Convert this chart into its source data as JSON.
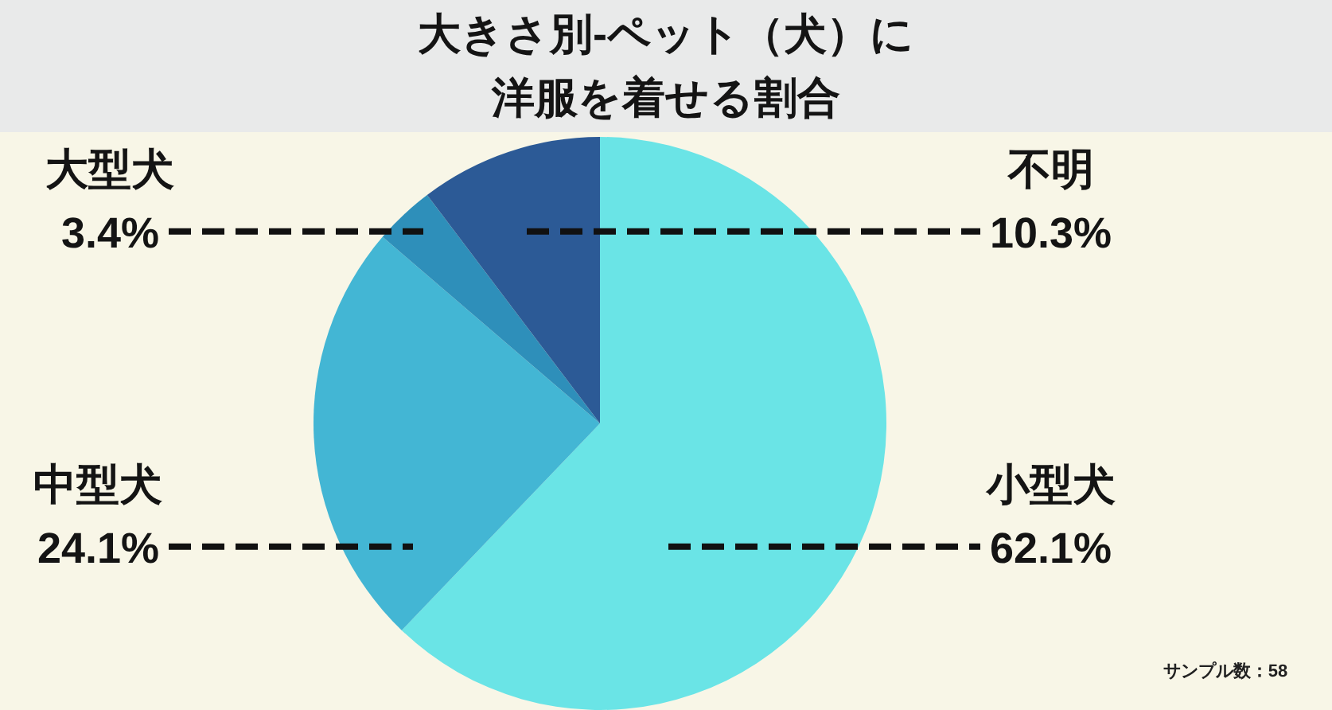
{
  "chart_data": {
    "type": "pie",
    "title": "大きさ別-ペット（犬）に洋服を着せる割合",
    "categories": [
      "小型犬",
      "中型犬",
      "大型犬",
      "不明"
    ],
    "values": [
      62.1,
      24.1,
      3.4,
      10.3
    ],
    "colors": [
      "#6ae4e6",
      "#43b6d4",
      "#2e8fba",
      "#2c5a96"
    ],
    "value_labels": [
      "62.1%",
      "24.1%",
      "3.4%",
      "10.3%"
    ],
    "annotations": [
      "サンプル数：58"
    ]
  }
}
